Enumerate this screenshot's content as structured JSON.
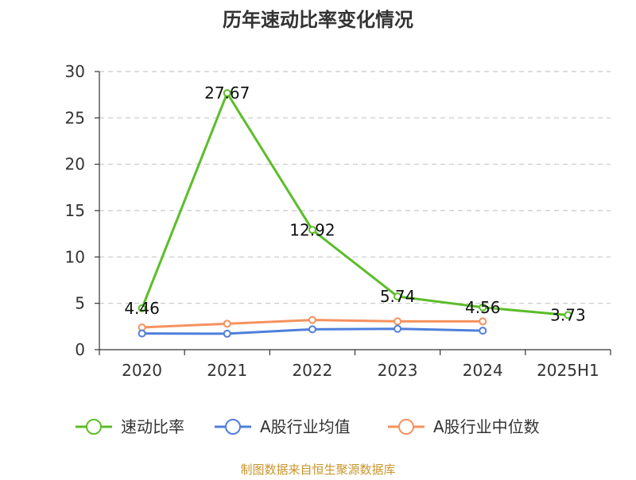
{
  "chart_data": {
    "type": "line",
    "title": "历年速动比率变化情况",
    "categories": [
      "2020",
      "2021",
      "2022",
      "2023",
      "2024",
      "2025H1"
    ],
    "ylim": [
      0,
      30
    ],
    "yticks": [
      0,
      5,
      10,
      15,
      20,
      25,
      30
    ],
    "ytick_labels": [
      "0",
      "5",
      "10",
      "15",
      "20",
      "25",
      "30"
    ],
    "grid": "horizontal dashed",
    "legend_position": "bottom",
    "series": [
      {
        "name": "速动比率",
        "color": "#5cbd2b",
        "values": [
          4.46,
          27.67,
          12.92,
          5.74,
          4.56,
          3.73
        ],
        "labels": [
          "4.46",
          "27.67",
          "12.92",
          "5.74",
          "4.56",
          "3.73"
        ]
      },
      {
        "name": "A股行业均值",
        "color": "#4f7fdc",
        "values": [
          1.75,
          1.72,
          2.2,
          2.25,
          2.05,
          null
        ]
      },
      {
        "name": "A股行业中位数",
        "color": "#f5925e",
        "values": [
          2.4,
          2.8,
          3.2,
          3.05,
          3.05,
          null
        ]
      }
    ],
    "source": "制图数据来自恒生聚源数据库",
    "source_color": "#c8962e"
  }
}
